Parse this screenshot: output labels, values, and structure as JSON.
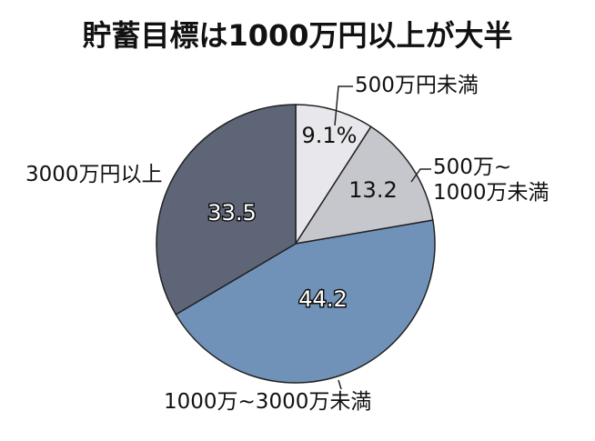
{
  "chart_data": {
    "type": "pie",
    "title": "貯蓄目標は1000万円以上が大半",
    "categories": [
      "500万円未満",
      "500万~\n1000万未満",
      "1000万~3000万未満",
      "3000万円以上"
    ],
    "values": [
      9.1,
      13.2,
      44.2,
      33.5
    ],
    "value_labels": [
      "9.1%",
      "13.2",
      "44.2",
      "33.5"
    ],
    "colors": [
      "#e8e8ec",
      "#c5c7cd",
      "#7192b8",
      "#5d6577"
    ]
  }
}
